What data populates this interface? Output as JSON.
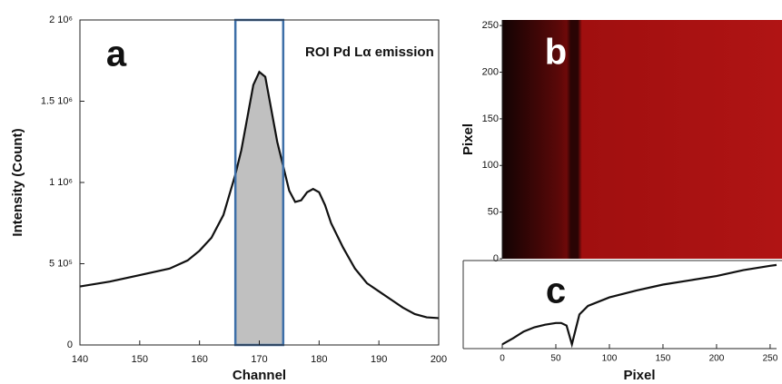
{
  "chart_data": [
    {
      "type": "line",
      "annotation": "a",
      "note": "ROI Pd Lα emission",
      "xlabel": "Channel",
      "ylabel": "Intensity (Count)",
      "x": [
        140,
        145,
        150,
        155,
        158,
        160,
        162,
        164,
        166,
        167,
        168,
        169,
        170,
        171,
        172,
        173,
        174,
        175,
        176,
        177,
        178,
        179,
        180,
        181,
        182,
        184,
        186,
        188,
        190,
        192,
        194,
        196,
        198,
        200
      ],
      "values": [
        360000,
        390000,
        430000,
        470000,
        520000,
        580000,
        660000,
        800000,
        1050000,
        1200000,
        1400000,
        1600000,
        1680000,
        1650000,
        1450000,
        1250000,
        1100000,
        950000,
        880000,
        890000,
        940000,
        960000,
        940000,
        860000,
        750000,
        600000,
        470000,
        380000,
        330000,
        280000,
        230000,
        190000,
        170000,
        165000
      ],
      "roi": [
        166,
        174
      ],
      "color": "#111111",
      "roi_color": "#3d6fa8",
      "fill_color": "#c0c0c0",
      "xlim": [
        140,
        200
      ],
      "xticks": [
        140,
        150,
        160,
        170,
        180,
        190,
        200
      ],
      "ylim": [
        0,
        2000000
      ],
      "yticks": [
        0,
        {
          "value": 500000,
          "label": "5 10⁵"
        },
        {
          "value": 1000000,
          "label": "1 10⁶"
        },
        {
          "value": 1500000,
          "label": "1.5 10⁶"
        },
        {
          "value": 2000000,
          "label": "2 10⁶"
        }
      ]
    },
    {
      "type": "image",
      "annotation": "b",
      "ylabel": "Pixel",
      "ylim": [
        0,
        256
      ],
      "yticks": [
        0,
        50,
        100,
        150,
        200,
        250
      ]
    },
    {
      "type": "line",
      "annotation": "c",
      "xlabel": "Pixel",
      "x": [
        0,
        10,
        20,
        30,
        40,
        50,
        55,
        60,
        65,
        68,
        72,
        80,
        100,
        125,
        150,
        175,
        200,
        225,
        250,
        256
      ],
      "values": [
        5,
        12,
        20,
        25,
        28,
        30,
        30,
        27,
        5,
        20,
        40,
        50,
        60,
        68,
        75,
        80,
        85,
        92,
        97,
        98
      ],
      "color": "#111111",
      "xlim": [
        0,
        256
      ],
      "xticks": [
        0,
        50,
        100,
        150,
        200,
        250
      ],
      "ylim": [
        0,
        100
      ]
    }
  ]
}
